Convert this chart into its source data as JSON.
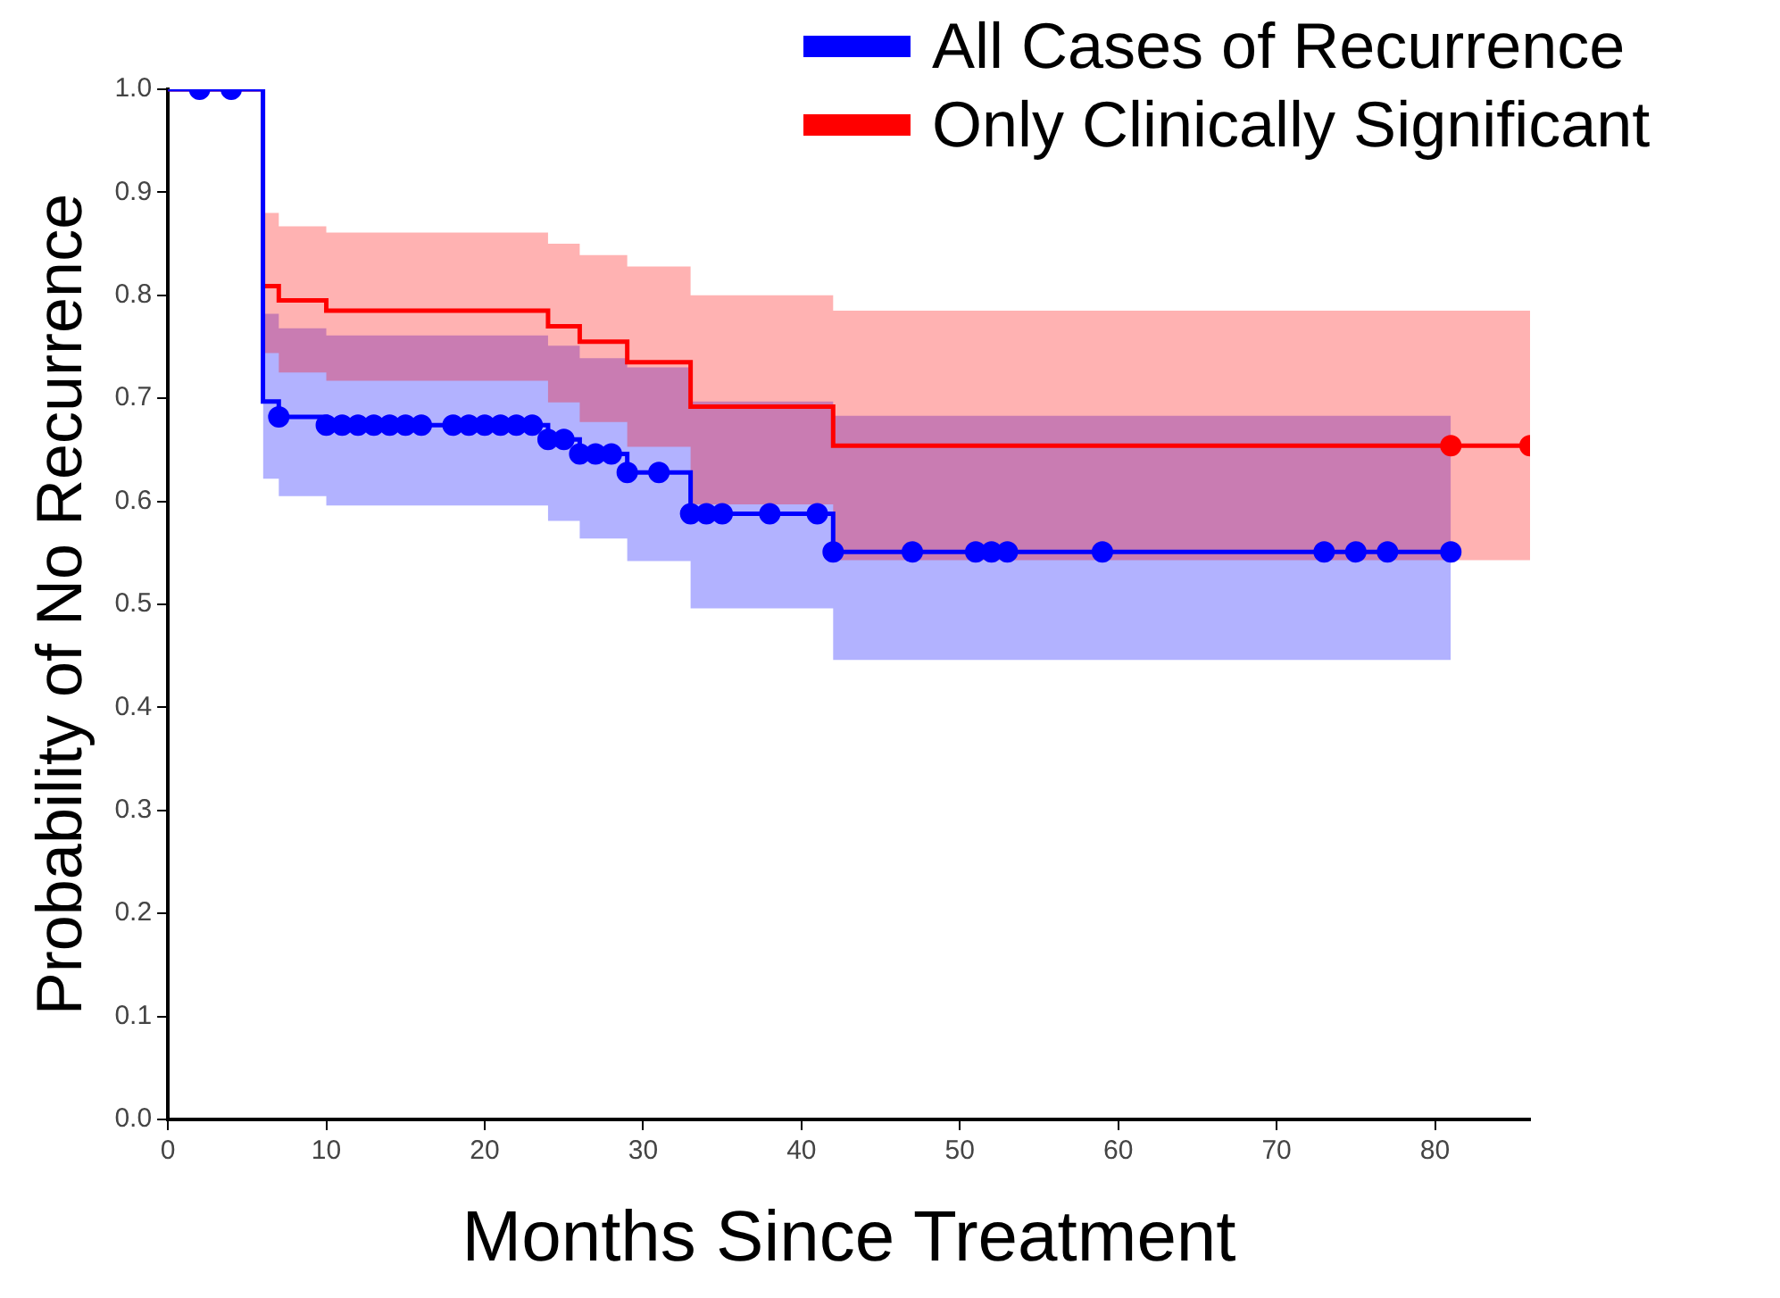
{
  "chart_data": {
    "type": "step",
    "xlabel": "Months Since Treatment",
    "ylabel": "Probability of No Recurrence",
    "xlim": [
      0,
      86
    ],
    "xticks": [
      0,
      10,
      20,
      30,
      40,
      50,
      60,
      70,
      80
    ],
    "ylim": [
      0,
      1
    ],
    "yticks": [
      {
        "value": 0,
        "label": "0.0"
      },
      {
        "value": 0.1,
        "label": "0.1"
      },
      {
        "value": 0.2,
        "label": "0.2"
      },
      {
        "value": 0.3,
        "label": "0.3"
      },
      {
        "value": 0.4,
        "label": "0.4"
      },
      {
        "value": 0.5,
        "label": "0.5"
      },
      {
        "value": 0.6,
        "label": "0.6"
      },
      {
        "value": 0.7,
        "label": "0.7"
      },
      {
        "value": 0.8,
        "label": "0.8"
      },
      {
        "value": 0.9,
        "label": "0.9"
      },
      {
        "value": 1,
        "label": "1.0"
      }
    ],
    "grid": false,
    "legend": "top right",
    "series": [
      {
        "name": "All Cases of Recurrence",
        "type": "step",
        "color": "#0000ff",
        "marker": "none",
        "x": [
          0,
          6,
          7,
          10,
          24,
          26,
          29,
          33,
          42,
          81
        ],
        "values": [
          1.0,
          0.697,
          0.682,
          0.674,
          0.66,
          0.646,
          0.628,
          0.588,
          0.551,
          0.551
        ],
        "lower": [
          null,
          0.622,
          0.605,
          0.596,
          0.581,
          0.564,
          0.542,
          0.496,
          0.446,
          0.446
        ],
        "upper": [
          null,
          0.782,
          0.768,
          0.761,
          0.751,
          0.739,
          0.73,
          0.697,
          0.683,
          0.683
        ]
      },
      {
        "name": "Only Clinically Significant",
        "type": "step",
        "color": "#ff0000",
        "marker": "none",
        "x": [
          0,
          6,
          7,
          10,
          24,
          26,
          29,
          33,
          42,
          86
        ],
        "values": [
          1.0,
          0.809,
          0.795,
          0.785,
          0.77,
          0.755,
          0.735,
          0.692,
          0.654,
          0.654
        ],
        "lower": [
          null,
          0.744,
          0.725,
          0.717,
          0.696,
          0.677,
          0.653,
          0.597,
          0.543,
          0.543
        ],
        "upper": [
          null,
          0.88,
          0.867,
          0.861,
          0.85,
          0.839,
          0.828,
          0.8,
          0.785,
          0.785
        ]
      },
      {
        "type": "scatter",
        "color": "#0000ff",
        "marker": "circle",
        "x": [
          2,
          4,
          7,
          10,
          11,
          12,
          13,
          14,
          15,
          16,
          18,
          19,
          20,
          21,
          22,
          23,
          24,
          25,
          26,
          27,
          28,
          29,
          31,
          33,
          34,
          35,
          38,
          41,
          42,
          47,
          51,
          52,
          53,
          59,
          73,
          75,
          77,
          81
        ],
        "values": [
          1,
          1,
          0.682,
          0.674,
          0.674,
          0.674,
          0.674,
          0.674,
          0.674,
          0.674,
          0.674,
          0.674,
          0.674,
          0.674,
          0.674,
          0.674,
          0.66,
          0.66,
          0.646,
          0.646,
          0.646,
          0.628,
          0.628,
          0.588,
          0.588,
          0.588,
          0.588,
          0.588,
          0.551,
          0.551,
          0.551,
          0.551,
          0.551,
          0.551,
          0.551,
          0.551,
          0.551,
          0.551
        ]
      },
      {
        "type": "scatter",
        "color": "#ff0000",
        "marker": "circle",
        "x": [
          81,
          86
        ],
        "values": [
          0.654,
          0.654
        ]
      }
    ]
  }
}
